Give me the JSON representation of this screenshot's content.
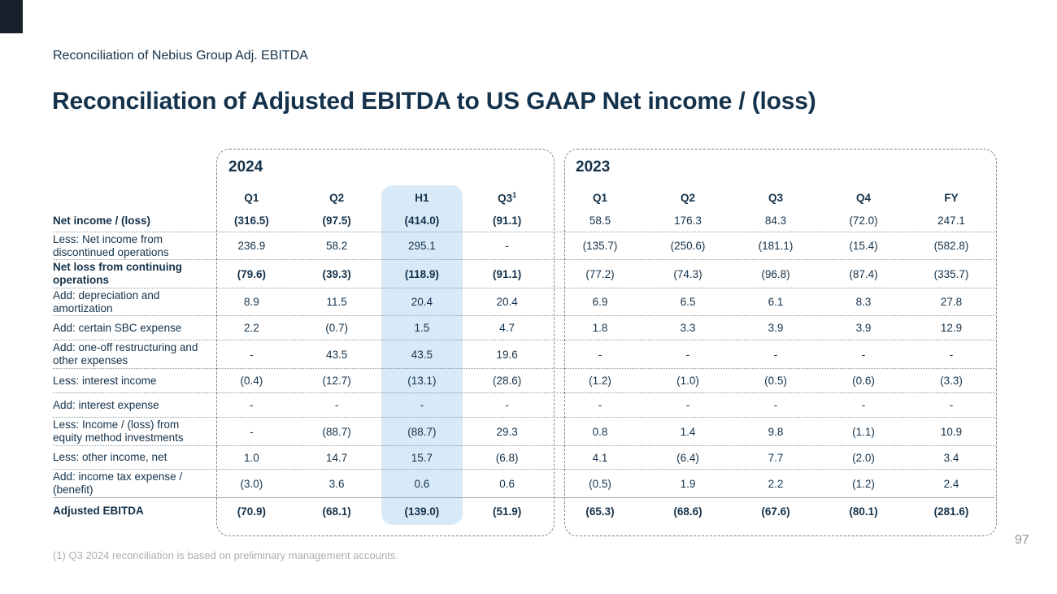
{
  "slide": {
    "eyebrow": "Reconciliation of Nebius Group Adj. EBITDA",
    "title": "Reconciliation of Adjusted EBITDA to US GAAP Net income / (loss)",
    "footnote": "(1) Q3 2024 reconciliation is based on preliminary management accounts.",
    "page_number": "97"
  },
  "colors": {
    "text_dark_navy": "#14324b",
    "h1_column_highlight": "#d8eaf8",
    "box_dashed_border": "#79838d",
    "row_separator": "#8f99a1",
    "footnote_gray": "#a9adb1",
    "page_number_gray": "#8f969d",
    "logo_block": "#16202b"
  },
  "table": {
    "groups": [
      {
        "year": "2024",
        "columns": [
          "Q1",
          "Q2",
          "H1",
          "Q3"
        ],
        "q3_footnote_marker": "1",
        "highlighted_column": "H1"
      },
      {
        "year": "2023",
        "columns": [
          "Q1",
          "Q2",
          "Q3",
          "Q4",
          "FY"
        ]
      }
    ],
    "rows": [
      {
        "label": "Net income / (loss)",
        "label_bold": true,
        "v2024": [
          "(316.5)",
          "(97.5)",
          "(414.0)",
          "(91.1)"
        ],
        "v2024_bold": true,
        "v2023": [
          "58.5",
          "176.3",
          "84.3",
          "(72.0)",
          "247.1"
        ],
        "v2023_bold": false
      },
      {
        "label": "Less: Net income from discontinued operations",
        "label_bold": false,
        "v2024": [
          "236.9",
          "58.2",
          "295.1",
          "-"
        ],
        "v2024_bold": false,
        "v2023": [
          "(135.7)",
          "(250.6)",
          "(181.1)",
          "(15.4)",
          "(582.8)"
        ],
        "v2023_bold": false
      },
      {
        "label": "Net loss from continuing operations",
        "label_bold": true,
        "v2024": [
          "(79.6)",
          "(39.3)",
          "(118.9)",
          "(91.1)"
        ],
        "v2024_bold": true,
        "v2023": [
          "(77.2)",
          "(74.3)",
          "(96.8)",
          "(87.4)",
          "(335.7)"
        ],
        "v2023_bold": false
      },
      {
        "label": "Add: depreciation and amortization",
        "label_bold": false,
        "v2024": [
          "8.9",
          "11.5",
          "20.4",
          "20.4"
        ],
        "v2024_bold": false,
        "v2023": [
          "6.9",
          "6.5",
          "6.1",
          "8.3",
          "27.8"
        ],
        "v2023_bold": false
      },
      {
        "label": "Add: certain SBC expense",
        "label_bold": false,
        "v2024": [
          "2.2",
          "(0.7)",
          "1.5",
          "4.7"
        ],
        "v2024_bold": false,
        "v2023": [
          "1.8",
          "3.3",
          "3.9",
          "3.9",
          "12.9"
        ],
        "v2023_bold": false
      },
      {
        "label": "Add: one-off restructuring and other expenses",
        "label_bold": false,
        "v2024": [
          "-",
          "43.5",
          "43.5",
          "19.6"
        ],
        "v2024_bold": false,
        "v2023": [
          "-",
          "-",
          "-",
          "-",
          "-"
        ],
        "v2023_bold": false
      },
      {
        "label": "Less: interest income",
        "label_bold": false,
        "v2024": [
          "(0.4)",
          "(12.7)",
          "(13.1)",
          "(28.6)"
        ],
        "v2024_bold": false,
        "v2023": [
          "(1.2)",
          "(1.0)",
          "(0.5)",
          "(0.6)",
          "(3.3)"
        ],
        "v2023_bold": false
      },
      {
        "label": "Add: interest expense",
        "label_bold": false,
        "v2024": [
          "-",
          "-",
          "-",
          "-"
        ],
        "v2024_bold": false,
        "v2023": [
          "-",
          "-",
          "-",
          "-",
          "-"
        ],
        "v2023_bold": false
      },
      {
        "label": "Less: Income / (loss) from equity method investments",
        "label_bold": false,
        "v2024": [
          "-",
          "(88.7)",
          "(88.7)",
          "29.3"
        ],
        "v2024_bold": false,
        "v2023": [
          "0.8",
          "1.4",
          "9.8",
          "(1.1)",
          "10.9"
        ],
        "v2023_bold": false
      },
      {
        "label": "Less: other income, net",
        "label_bold": false,
        "v2024": [
          "1.0",
          "14.7",
          "15.7",
          "(6.8)"
        ],
        "v2024_bold": false,
        "v2023": [
          "4.1",
          "(6.4)",
          "7.7",
          "(2.0)",
          "3.4"
        ],
        "v2023_bold": false
      },
      {
        "label": "Add: income tax expense / (benefit)",
        "label_bold": false,
        "v2024": [
          "(3.0)",
          "3.6",
          "0.6",
          "0.6"
        ],
        "v2024_bold": false,
        "v2023": [
          "(0.5)",
          "1.9",
          "2.2",
          "(1.2)",
          "2.4"
        ],
        "v2023_bold": false
      },
      {
        "label": "Adjusted EBITDA",
        "label_bold": true,
        "v2024": [
          "(70.9)",
          "(68.1)",
          "(139.0)",
          "(51.9)"
        ],
        "v2024_bold": true,
        "v2023": [
          "(65.3)",
          "(68.6)",
          "(67.6)",
          "(80.1)",
          "(281.6)"
        ],
        "v2023_bold": true
      }
    ]
  }
}
